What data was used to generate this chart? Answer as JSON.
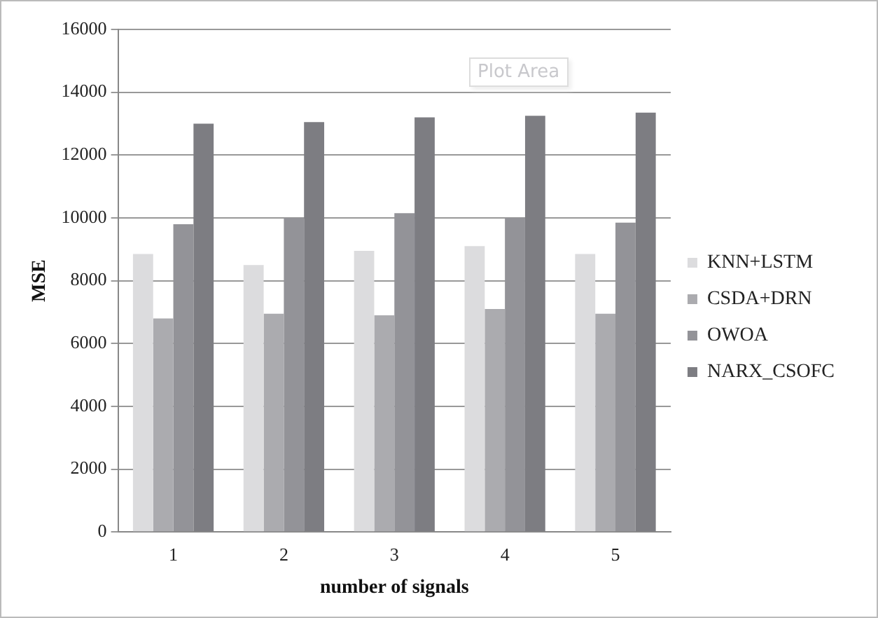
{
  "chart_data": {
    "type": "bar",
    "xlabel": "number of signals",
    "ylabel": "MSE",
    "categories": [
      "1",
      "2",
      "3",
      "4",
      "5"
    ],
    "series": [
      {
        "name": "KNN+LSTM",
        "color": "#dcdcde",
        "values": [
          8850,
          8500,
          8950,
          9100,
          8850
        ]
      },
      {
        "name": "CSDA+DRN",
        "color": "#ababaf",
        "values": [
          6800,
          6950,
          6900,
          7100,
          6950
        ]
      },
      {
        "name": "OWOA",
        "color": "#939398",
        "values": [
          9800,
          10000,
          10150,
          10000,
          9850
        ]
      },
      {
        "name": "NARX_CSOFC",
        "color": "#7d7d82",
        "values": [
          13000,
          13050,
          13200,
          13250,
          13350
        ]
      }
    ],
    "ylim": [
      0,
      16000
    ],
    "yticks": [
      0,
      2000,
      4000,
      6000,
      8000,
      10000,
      12000,
      14000,
      16000
    ],
    "grid": "y",
    "legend": "right",
    "annotations": [
      "Plot Area"
    ]
  }
}
